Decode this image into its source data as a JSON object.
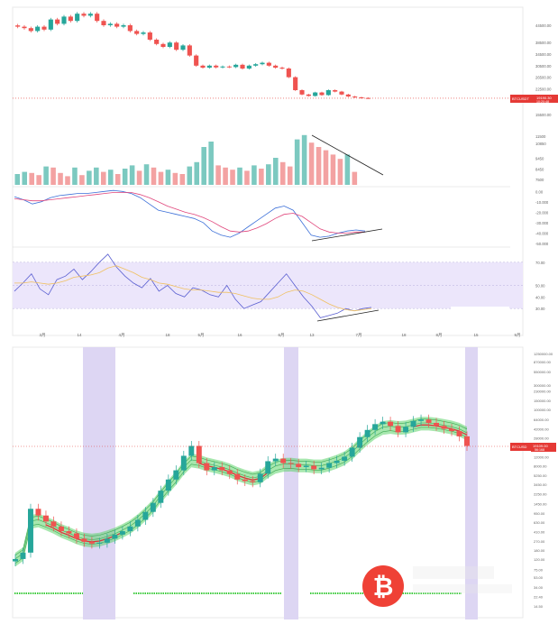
{
  "colors": {
    "up": "#26a69a",
    "down": "#ef5350",
    "vol_up": "#7cc9c0",
    "vol_down": "#f3a2a2",
    "macd_line": "#3b6fd8",
    "signal_line": "#e0457b",
    "rsi_line": "#5a5fd1",
    "rsi_ma": "#f0c060",
    "rsi_band": "#ece6fb",
    "shade": "#ddd6f3",
    "ribbon": "#5fd36b",
    "ribbon_dark": "#239a3b",
    "ma_red": "#d23a3a",
    "green_dots": "#3ecb3e",
    "price_tag": "#e53935",
    "logo_red": "#ef4136"
  },
  "top_chart": {
    "price_axis_ticks": [
      "44500.00",
      "38500.00",
      "34500.00",
      "30500.00",
      "26500.00",
      "22500.00",
      "18500.00",
      "15500.00"
    ],
    "last_price": "19190.30",
    "last_time": "10:20:48",
    "symbol_tag": "BTCUSDT",
    "volume_axis_ticks": [
      "11500",
      "10850",
      "9450",
      "8450",
      "7500"
    ],
    "macd_axis_ticks": [
      "0.00",
      "-10.000",
      "-20.000",
      "-30.000",
      "-40.000",
      "-50.000"
    ],
    "rsi_axis_ticks": [
      "70.00",
      "50.00",
      "40.00",
      "30.00"
    ],
    "time_ticks": [
      "3月",
      "14",
      "4月",
      "18",
      "5月",
      "16",
      "6月",
      "13",
      "7月",
      "18",
      "8月",
      "15",
      "9月"
    ]
  },
  "bottom_chart": {
    "price_axis_ticks": [
      "1250000.00",
      "870000.00",
      "550000.00",
      "300000.00",
      "230000.00",
      "150000.00",
      "100000.00",
      "64000.00",
      "42000.00",
      "28000.00",
      "19000.00",
      "12000.00",
      "8000.00",
      "5250.00",
      "3450.00",
      "2250.00",
      "1450.00",
      "950.00",
      "630.00",
      "410.00",
      "270.00",
      "180.00",
      "120.00",
      "75.00",
      "53.00",
      "34.00",
      "22.40",
      "14.50"
    ],
    "last_price": "19109.00",
    "symbol_tag": "BTCUSD",
    "sub_tag": "56:168",
    "logo_glyph": "₿"
  },
  "chart_data": [
    {
      "type": "candlestick",
      "title": "",
      "panel": "price",
      "y": [
        44000,
        43500,
        42500,
        44000,
        43000,
        46500,
        45000,
        47500,
        46000,
        48500,
        47800,
        48500,
        46000,
        44500,
        45000,
        44000,
        44500,
        42500,
        41500,
        42000,
        39500,
        38000,
        37000,
        38500,
        36000,
        37500,
        34000,
        30500,
        29800,
        30500,
        29900,
        30200,
        30000,
        30800,
        29500,
        30500,
        31000,
        31500,
        30500,
        29800,
        29500,
        26500,
        22000,
        20500,
        20000,
        21200,
        20300,
        22000,
        21500,
        20500,
        19800,
        19500,
        19300,
        19200
      ]
    },
    {
      "type": "bar",
      "panel": "volume",
      "values": [
        8000,
        8200,
        8100,
        7900,
        8700,
        8600,
        8100,
        7800,
        8600,
        7900,
        8300,
        8600,
        8200,
        8400,
        8000,
        8500,
        8800,
        8300,
        8900,
        8600,
        8200,
        8400,
        8100,
        8000,
        8700,
        9100,
        10500,
        11000,
        8800,
        8600,
        8400,
        8600,
        8300,
        8800,
        8500,
        8900,
        9500,
        9100,
        8700,
        11200,
        11600,
        10900,
        10500,
        10200,
        9800,
        9400,
        9800,
        8200
      ]
    },
    {
      "type": "line",
      "panel": "macd",
      "series": [
        {
          "values": [
            -5,
            -8,
            -12,
            -10,
            -6,
            -4,
            -3,
            -2,
            -2,
            -1,
            0,
            1,
            0,
            -2,
            -6,
            -12,
            -18,
            -20,
            -22,
            -24,
            -26,
            -30,
            -38,
            -42,
            -44,
            -40,
            -34,
            -28,
            -22,
            -16,
            -14,
            -18,
            -30,
            -42,
            -44,
            -43,
            -40,
            -38,
            -37,
            -38
          ]
        },
        {
          "values": [
            -7,
            -8,
            -9,
            -9,
            -8,
            -7,
            -6,
            -5,
            -4,
            -3,
            -2,
            -1,
            -1,
            -1,
            -3,
            -6,
            -10,
            -14,
            -17,
            -20,
            -22,
            -25,
            -29,
            -34,
            -38,
            -39,
            -38,
            -35,
            -31,
            -26,
            -22,
            -21,
            -24,
            -30,
            -36,
            -39,
            -40,
            -40,
            -39,
            -39
          ]
        }
      ]
    },
    {
      "type": "line",
      "panel": "rsi",
      "series": [
        {
          "values": [
            45,
            52,
            60,
            47,
            42,
            55,
            58,
            64,
            55,
            62,
            70,
            77,
            66,
            58,
            52,
            48,
            56,
            45,
            50,
            43,
            40,
            48,
            46,
            42,
            40,
            50,
            38,
            30,
            33,
            36,
            44,
            52,
            60,
            50,
            40,
            32,
            22,
            24,
            26,
            30,
            28,
            30,
            31
          ]
        },
        {
          "values": [
            52,
            52,
            53,
            52,
            51,
            52,
            54,
            57,
            58,
            59,
            61,
            65,
            67,
            64,
            61,
            57,
            55,
            52,
            51,
            49,
            47,
            46,
            46,
            45,
            44,
            44,
            43,
            41,
            39,
            38,
            38,
            40,
            44,
            46,
            45,
            42,
            38,
            34,
            31,
            29,
            28,
            29,
            30
          ]
        }
      ],
      "ylim": [
        20,
        80
      ]
    },
    {
      "type": "line",
      "panel": "long-term log price",
      "series": [
        {
          "values": [
            120,
            160,
            1150,
            850,
            650,
            520,
            420,
            380,
            300,
            260,
            240,
            250,
            300,
            360,
            420,
            520,
            700,
            1000,
            1500,
            2600,
            4300,
            6500,
            12500,
            19500,
            9000,
            6500,
            7500,
            6500,
            5500,
            4300,
            4000,
            3800,
            5600,
            9800,
            11000,
            9000,
            8700,
            7500,
            8000,
            6800,
            7300,
            9000,
            10000,
            12000,
            18000,
            29000,
            40000,
            52000,
            58000,
            48000,
            36000,
            46000,
            60000,
            64000,
            55000,
            48000,
            42000,
            38000,
            30000,
            19500
          ]
        },
        {
          "values": [
            110,
            140,
            600,
            640,
            560,
            480,
            400,
            350,
            300,
            270,
            260,
            270,
            300,
            340,
            400,
            480,
            620,
            850,
            1200,
            1900,
            2900,
            4300,
            6800,
            9500,
            9000,
            8000,
            7400,
            6800,
            6100,
            5200,
            4600,
            4200,
            4500,
            5900,
            7200,
            7800,
            7900,
            7600,
            7600,
            7300,
            7300,
            8000,
            9000,
            10500,
            13500,
            19000,
            26000,
            34000,
            41000,
            43000,
            41000,
            42000,
            46000,
            50000,
            50000,
            48000,
            45000,
            42000,
            38000,
            32000
          ]
        }
      ]
    }
  ]
}
